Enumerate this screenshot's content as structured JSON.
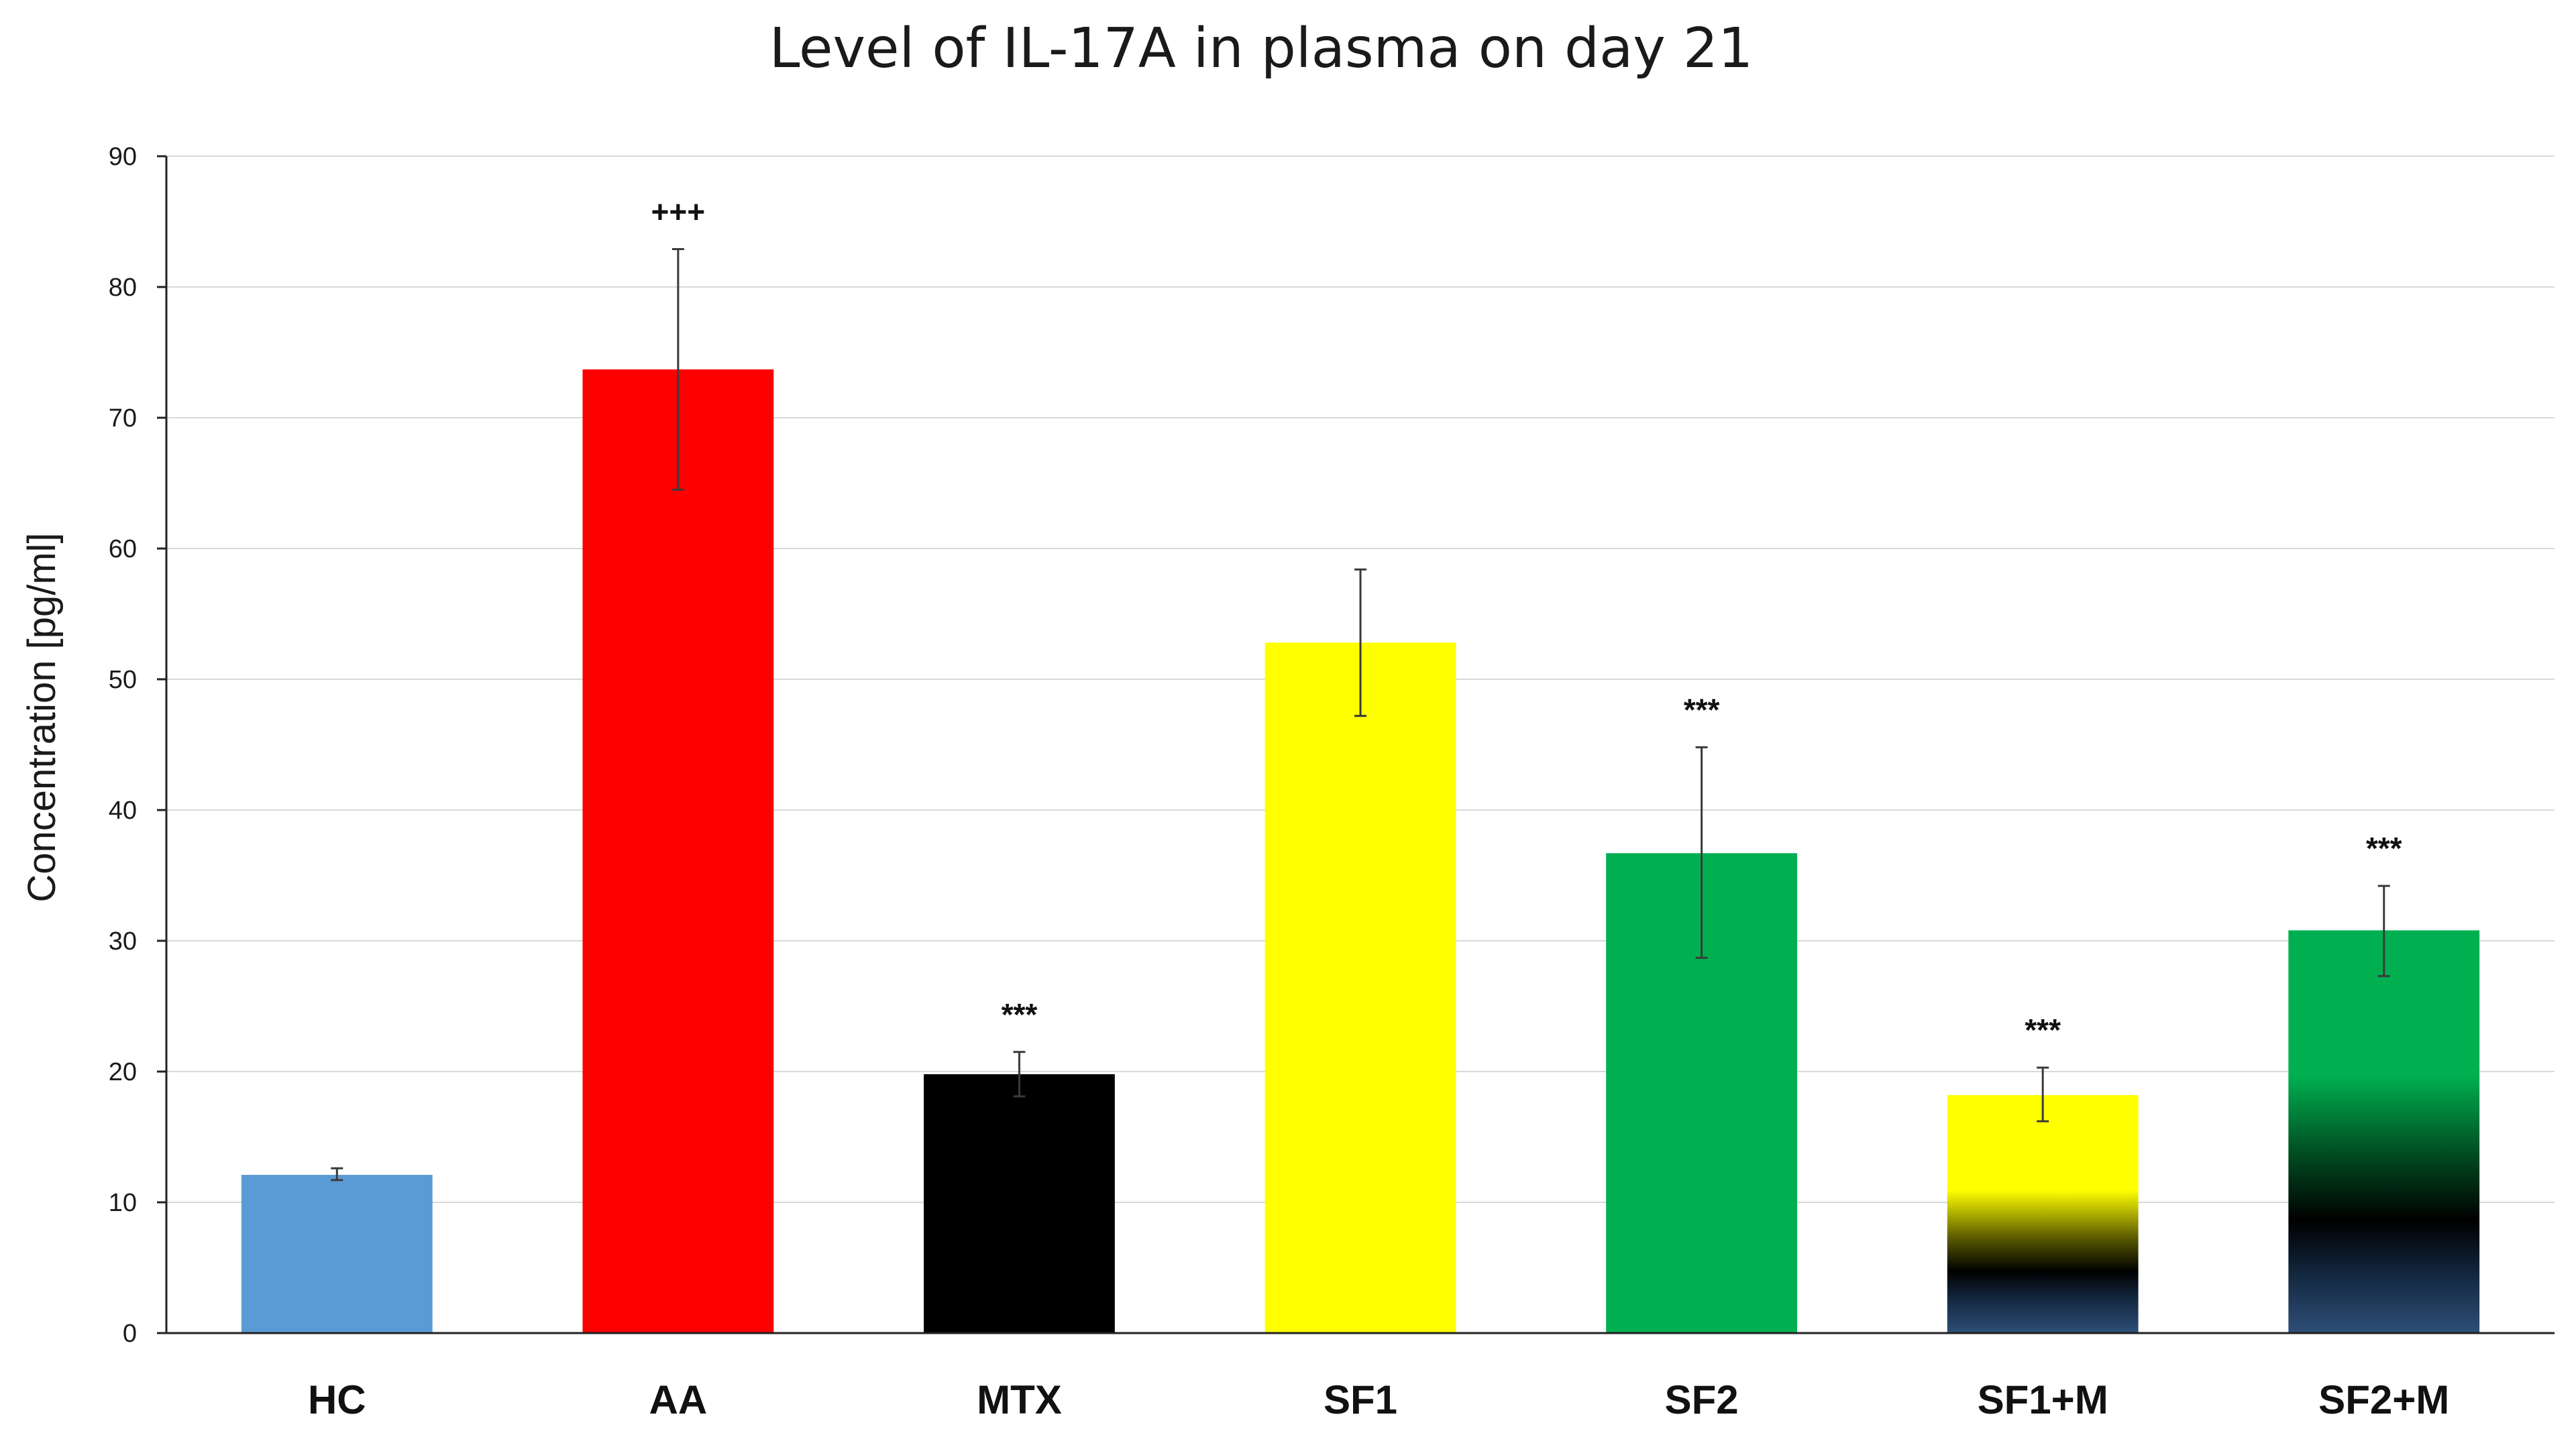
{
  "chart_data": {
    "type": "bar",
    "title": "Level of IL-17A in plasma on day 21",
    "xlabel": "",
    "ylabel": "Concentration [pg/ml]",
    "ylim": [
      0,
      90
    ],
    "yticks": [
      0,
      10,
      20,
      30,
      40,
      50,
      60,
      70,
      80,
      90
    ],
    "grid": true,
    "legend": "none",
    "categories": [
      "HC",
      "AA",
      "MTX",
      "SF1",
      "SF2",
      "SF1+M",
      "SF2+M"
    ],
    "values": [
      12.1,
      73.7,
      19.8,
      52.8,
      36.7,
      18.2,
      30.8
    ],
    "error_upper": [
      12.6,
      82.9,
      21.5,
      58.4,
      44.8,
      20.3,
      34.2
    ],
    "error_lower": [
      11.7,
      64.5,
      18.1,
      47.2,
      28.7,
      16.2,
      27.3
    ],
    "annotations": [
      "",
      "+++",
      "***",
      "",
      "***",
      "***",
      "***"
    ],
    "colors": [
      "#5b9bd5",
      "#ff0000",
      "#000000",
      "#ffff00",
      "#00b050",
      "gradient-yellow-black-blue",
      "gradient-green-black-blue"
    ]
  }
}
